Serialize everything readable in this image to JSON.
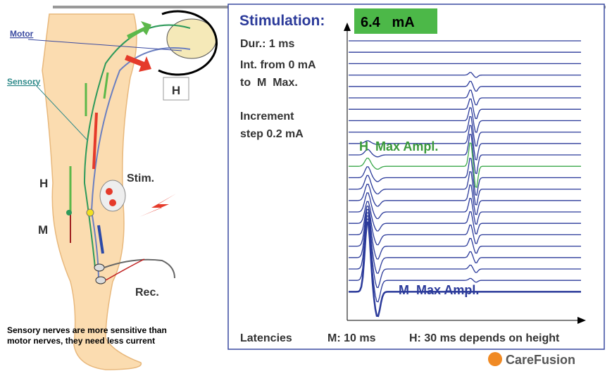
{
  "left": {
    "motor": "Motor",
    "sensory": "Sensory",
    "spinal_label": "H",
    "h_label": "H",
    "m_label": "M",
    "stim": "Stim.",
    "rec": "Rec.",
    "note_lines": [
      "Sensory nerves are more sensitive than",
      "motor nerves, they need less current"
    ]
  },
  "panel": {
    "title": "Stimulation:",
    "current": "6.4   mA",
    "params": [
      "Dur.: 1 ms",
      "Int. from 0 mA",
      "to  M  Max.",
      "Increment",
      "step 0.2 mA"
    ],
    "h_max": "H  Max Ampl.",
    "m_max": "M  Max Ampl."
  },
  "footer": {
    "latencies": "Latencies",
    "m_latency": "M: 10 ms",
    "h_latency": "H: 30 ms depends on height"
  },
  "logo": "CareFusion"
}
